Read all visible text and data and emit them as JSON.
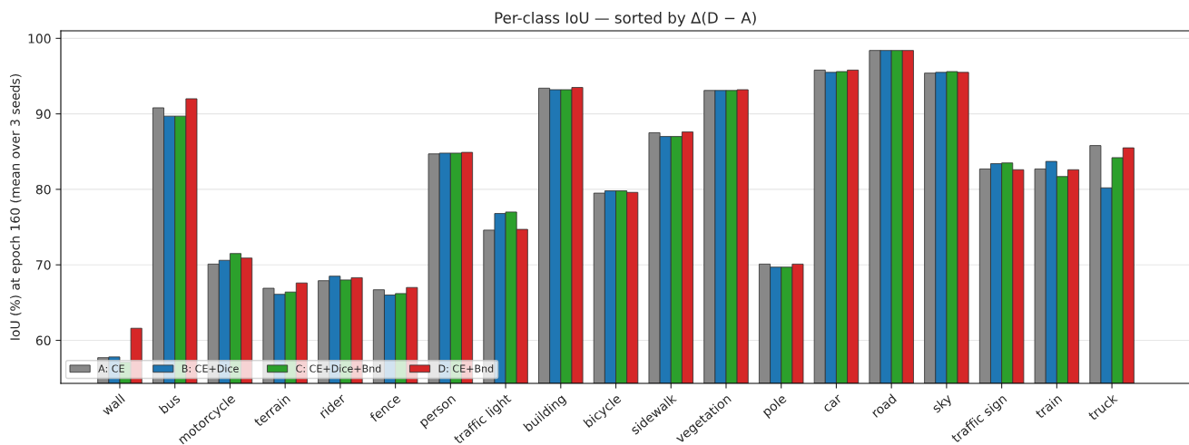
{
  "chart_data": {
    "type": "bar",
    "title": "Per-class IoU — sorted by Δ(D − A)",
    "ylabel": "IoU (%) at epoch 160 (mean over 3 seeds)",
    "categories": [
      "wall",
      "bus",
      "motorcycle",
      "terrain",
      "rider",
      "fence",
      "person",
      "traffic light",
      "building",
      "bicycle",
      "sidewalk",
      "vegetation",
      "pole",
      "car",
      "road",
      "sky",
      "traffic sign",
      "train",
      "truck"
    ],
    "series": [
      {
        "name": "A: CE",
        "color": "#888888",
        "values": [
          57.7,
          90.8,
          70.1,
          66.9,
          67.9,
          66.7,
          84.7,
          74.6,
          93.4,
          79.5,
          87.5,
          93.1,
          70.1,
          95.8,
          98.4,
          95.4,
          82.7,
          82.7,
          85.8
        ]
      },
      {
        "name": "B: CE+Dice",
        "color": "#1f77b4",
        "values": [
          57.8,
          89.7,
          70.6,
          66.1,
          68.5,
          66.0,
          84.8,
          76.8,
          93.2,
          79.8,
          87.0,
          93.1,
          69.7,
          95.5,
          98.4,
          95.5,
          83.4,
          83.7,
          80.2
        ]
      },
      {
        "name": "C: CE+Dice+Bnd",
        "color": "#2ca02c",
        "values": [
          57.1,
          89.7,
          71.5,
          66.4,
          68.0,
          66.2,
          84.8,
          77.0,
          93.2,
          79.8,
          87.0,
          93.1,
          69.7,
          95.6,
          98.4,
          95.6,
          83.5,
          81.7,
          84.2
        ]
      },
      {
        "name": "D: CE+Bnd",
        "color": "#d62728",
        "values": [
          61.6,
          92.0,
          70.9,
          67.6,
          68.3,
          67.0,
          84.9,
          74.7,
          93.5,
          79.6,
          87.6,
          93.2,
          70.1,
          95.8,
          98.4,
          95.5,
          82.6,
          82.6,
          85.5
        ]
      }
    ],
    "ylim": [
      54.3,
      101
    ],
    "yticks": [
      60,
      70,
      80,
      90,
      100
    ],
    "grid": "y",
    "legend": "bottom left"
  }
}
